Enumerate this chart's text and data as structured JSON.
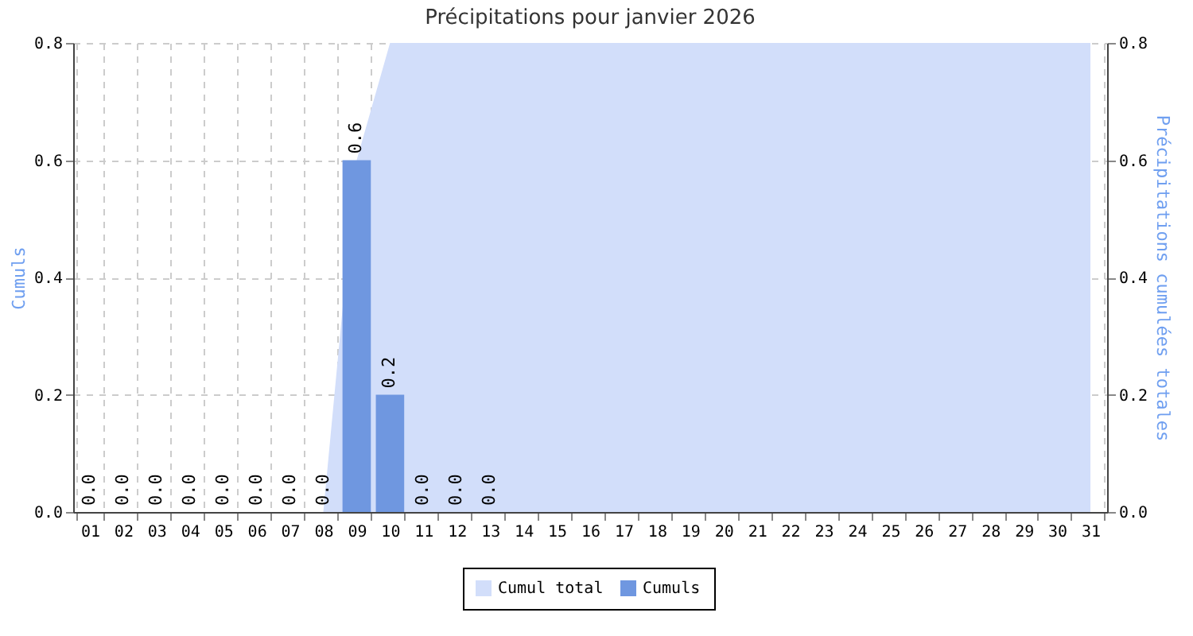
{
  "chart_data": {
    "type": "bar",
    "title": "Précipitations pour janvier 2026",
    "ylabel": "Cumuls",
    "y2label": "Précipitations cumulées totales",
    "categories": [
      "01",
      "02",
      "03",
      "04",
      "05",
      "06",
      "07",
      "08",
      "09",
      "10",
      "11",
      "12",
      "13",
      "14",
      "15",
      "16",
      "17",
      "18",
      "19",
      "20",
      "21",
      "22",
      "23",
      "24",
      "25",
      "26",
      "27",
      "28",
      "29",
      "30",
      "31"
    ],
    "series": [
      {
        "name": "Cumul total",
        "type": "area",
        "axis": "y2",
        "color": "#d2defa",
        "values": [
          0,
          0,
          0,
          0,
          0,
          0,
          0,
          0,
          0.6,
          0.8,
          0.8,
          0.8,
          0.8,
          0.8,
          0.8,
          0.8,
          0.8,
          0.8,
          0.8,
          0.8,
          0.8,
          0.8,
          0.8,
          0.8,
          0.8,
          0.8,
          0.8,
          0.8,
          0.8,
          0.8,
          0.8
        ]
      },
      {
        "name": "Cumuls",
        "color": "#6f97e0",
        "values": [
          0,
          0,
          0,
          0,
          0,
          0,
          0,
          0,
          0.6,
          0.2,
          0,
          0,
          0,
          null,
          null,
          null,
          null,
          null,
          null,
          null,
          null,
          null,
          null,
          null,
          null,
          null,
          null,
          null,
          null,
          null,
          null
        ],
        "value_labels": [
          "0.0",
          "0.0",
          "0.0",
          "0.0",
          "0.0",
          "0.0",
          "0.0",
          "0.0",
          "0.6",
          "0.2",
          "0.0",
          "0.0",
          "0.0",
          null,
          null,
          null,
          null,
          null,
          null,
          null,
          null,
          null,
          null,
          null,
          null,
          null,
          null,
          null,
          null,
          null,
          null
        ]
      }
    ],
    "ylim": [
      0,
      0.8
    ],
    "yticks": [
      {
        "value": 0,
        "label": "0.0"
      },
      0.2,
      0.4,
      0.6,
      0.8
    ],
    "y2lim": [
      0,
      0.8
    ],
    "y2ticks": [
      {
        "value": 0,
        "label": "0.0"
      },
      0.2,
      0.4,
      0.6,
      0.8
    ],
    "grid": true,
    "legend": "bottom"
  }
}
